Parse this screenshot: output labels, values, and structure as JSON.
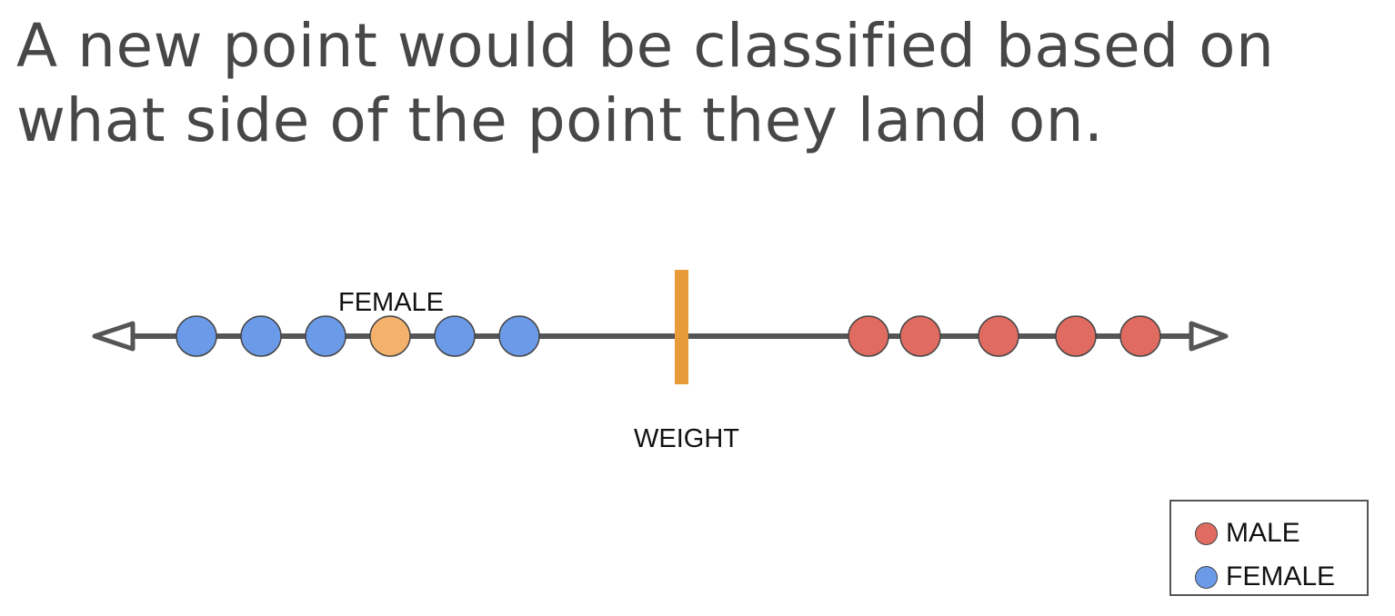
{
  "title": "A new point would be classified based on what side of the point they land on.",
  "axis": {
    "label": "WEIGHT",
    "line_color": "#555555",
    "threshold_color": "#E89B3A"
  },
  "new_point": {
    "label": "FEMALE",
    "color": "#F3B16B"
  },
  "classes": {
    "female": {
      "name": "FEMALE",
      "color": "#6B9BE8"
    },
    "male": {
      "name": "MALE",
      "color": "#E06B61"
    }
  },
  "legend": {
    "items": [
      {
        "label": "MALE",
        "color": "#E06B61"
      },
      {
        "label": "FEMALE",
        "color": "#6B9BE8"
      }
    ]
  },
  "points": [
    {
      "class": "female"
    },
    {
      "class": "female"
    },
    {
      "class": "female"
    },
    {
      "class": "new"
    },
    {
      "class": "female"
    },
    {
      "class": "female"
    },
    {
      "class": "male"
    },
    {
      "class": "male"
    },
    {
      "class": "male"
    },
    {
      "class": "male"
    },
    {
      "class": "male"
    }
  ]
}
